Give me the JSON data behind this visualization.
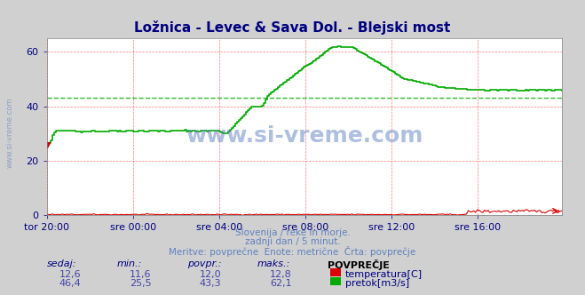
{
  "title": "Ložnica - Levec & Sava Dol. - Blejski most",
  "title_color": "#000080",
  "bg_color": "#d0d0d0",
  "plot_bg_color": "#ffffff",
  "grid_color_h": "#ff4444",
  "grid_color_v": "#ff4444",
  "ylabel_color": "#000080",
  "xlabel_color": "#000080",
  "yticks": [
    0,
    20,
    40,
    60
  ],
  "ylim": [
    0,
    65
  ],
  "xlim": [
    0,
    287
  ],
  "num_points": 288,
  "temperature_color": "#dd0000",
  "flow_color": "#00aa00",
  "avg_flow": 43.3,
  "avg_temp": 12.0,
  "watermark_color": "#6080c0",
  "subtitle_lines": [
    "Slovenija / reke in morje.",
    "zadnji dan / 5 minut.",
    "Meritve: povprečne  Enote: metrične  Črta: povprečje"
  ],
  "legend_header": "POVPREČJE",
  "legend_items": [
    {
      "label": "temperatura[C]",
      "color": "#dd0000",
      "sedaj": "12,6",
      "min": "11,6",
      "povpr": "12,0",
      "maks": "12,8"
    },
    {
      "label": "pretok[m3/s]",
      "color": "#00aa00",
      "sedaj": "46,4",
      "min": "25,5",
      "povpr": "43,3",
      "maks": "62,1"
    }
  ],
  "col_headers": [
    "sedaj:",
    "min.:",
    "povpr.:",
    "maks.:"
  ],
  "xtick_labels": [
    "tor 20:00",
    "sre 00:00",
    "sre 04:00",
    "sre 08:00",
    "sre 12:00",
    "sre 16:00"
  ],
  "xtick_positions": [
    0,
    48,
    96,
    144,
    192,
    240
  ]
}
